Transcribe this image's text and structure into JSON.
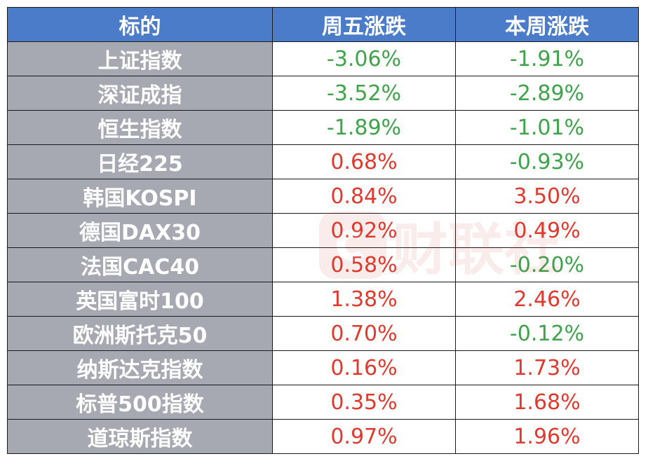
{
  "table": {
    "headers": [
      "标的",
      "周五涨跌",
      "本周涨跌"
    ],
    "rows": [
      {
        "name": "上证指数",
        "friday": "-3.06%",
        "week": "-1.91%"
      },
      {
        "name": "深证成指",
        "friday": "-3.52%",
        "week": "-2.89%"
      },
      {
        "name": "恒生指数",
        "friday": "-1.89%",
        "week": "-1.01%"
      },
      {
        "name": "日经225",
        "friday": "0.68%",
        "week": "-0.93%"
      },
      {
        "name": "韩国KOSPI",
        "friday": "0.84%",
        "week": "3.50%"
      },
      {
        "name": "德国DAX30",
        "friday": "0.92%",
        "week": "0.49%"
      },
      {
        "name": "法国CAC40",
        "friday": "0.58%",
        "week": "-0.20%"
      },
      {
        "name": "英国富时100",
        "friday": "1.38%",
        "week": "2.46%"
      },
      {
        "name": "欧洲斯托克50",
        "friday": "0.70%",
        "week": "-0.12%"
      },
      {
        "name": "纳斯达克指数",
        "friday": "0.16%",
        "week": "1.73%"
      },
      {
        "name": "标普500指数",
        "friday": "0.35%",
        "week": "1.68%"
      },
      {
        "name": "道琼斯指数",
        "friday": "0.97%",
        "week": "1.96%"
      }
    ]
  },
  "colors": {
    "header_bg": "#4a7cc9",
    "name_bg": "#a6a9b2",
    "negative": "#3ea34a",
    "positive": "#e03a2e"
  },
  "watermark": {
    "text": "财联社",
    "icon": "cls-logo-icon"
  }
}
